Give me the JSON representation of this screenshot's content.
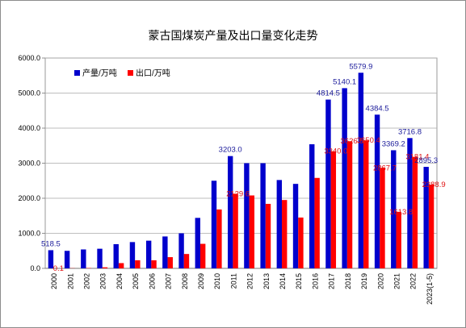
{
  "chart_data": {
    "type": "bar",
    "title": "蒙古国煤炭产量及出口量变化走势",
    "categories": [
      "2000",
      "2001",
      "2002",
      "2003",
      "2004",
      "2005",
      "2006",
      "2007",
      "2008",
      "2009",
      "2010",
      "2011",
      "2012",
      "2013",
      "2014",
      "2015",
      "2016",
      "2017",
      "2018",
      "2019",
      "2020",
      "2021",
      "2022",
      "2023(1-5)"
    ],
    "series": [
      {
        "name": "产量/万吨",
        "color": "#0000cc",
        "values": [
          518.5,
          500,
          540,
          560,
          690,
          750,
          790,
          910,
          1000,
          1440,
          2500,
          3203.0,
          3000,
          3000,
          2520,
          2410,
          3540,
          4814.5,
          5140.1,
          5579.9,
          4384.5,
          3369.2,
          3716.8,
          2895.3
        ],
        "labels": [
          "518.5",
          "",
          "",
          "",
          "",
          "",
          "",
          "",
          "",
          "",
          "",
          "3203.0",
          "",
          "",
          "",
          "",
          "",
          "4814.5",
          "5140.1",
          "5579.9",
          "4384.5",
          "3369.2",
          "3716.8",
          "2895.3"
        ]
      },
      {
        "name": "出口/万吨",
        "color": "#ff0000",
        "values": [
          0.1,
          5,
          10,
          30,
          150,
          230,
          230,
          320,
          410,
          700,
          1680,
          2129.6,
          2080,
          1840,
          1950,
          1450,
          2580,
          3340.0,
          3626.5,
          3650.4,
          2867.7,
          1613.8,
          3181.4,
          2388.9
        ],
        "labels": [
          "0.1",
          "",
          "",
          "",
          "",
          "",
          "",
          "",
          "",
          "",
          "",
          "2129.6",
          "",
          "",
          "",
          "",
          "",
          "3340.0",
          "3626.5",
          "3650.4",
          "2867.7",
          "1613.8",
          "3181.4",
          "2388.9"
        ]
      }
    ],
    "ylim": [
      0,
      6000
    ],
    "yticks": [
      "0.0",
      "1000.0",
      "2000.0",
      "3000.0",
      "4000.0",
      "5000.0",
      "6000.0"
    ],
    "grid": true,
    "legend": "top-left"
  }
}
